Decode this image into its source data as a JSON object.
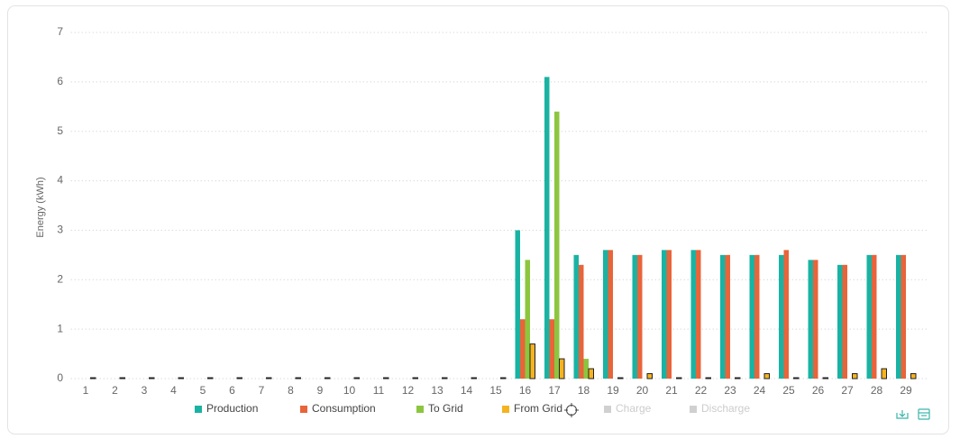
{
  "chart_data": {
    "type": "bar",
    "y_label": "Energy  (kWh)",
    "categories": [
      "1",
      "2",
      "3",
      "4",
      "5",
      "6",
      "7",
      "8",
      "9",
      "10",
      "11",
      "12",
      "13",
      "14",
      "15",
      "16",
      "17",
      "18",
      "19",
      "20",
      "21",
      "22",
      "23",
      "24",
      "25",
      "26",
      "27",
      "28",
      "29"
    ],
    "ylim": [
      0,
      7
    ],
    "yticks": [
      0,
      1,
      2,
      3,
      4,
      5,
      6,
      7
    ],
    "grid": true,
    "legend": "bottom",
    "series": [
      {
        "name": "Production",
        "color": "#1ab3a3",
        "values": [
          0,
          0,
          0,
          0,
          0,
          0,
          0,
          0,
          0,
          0,
          0,
          0,
          0,
          0,
          0,
          3.0,
          6.1,
          2.5,
          2.6,
          2.5,
          2.6,
          2.6,
          2.5,
          2.5,
          2.5,
          2.4,
          2.3,
          2.5,
          2.5
        ]
      },
      {
        "name": "Consumption",
        "color": "#e8643a",
        "values": [
          0,
          0,
          0,
          0,
          0,
          0,
          0,
          0,
          0,
          0,
          0,
          0,
          0,
          0,
          0,
          1.2,
          1.2,
          2.3,
          2.6,
          2.5,
          2.6,
          2.6,
          2.5,
          2.5,
          2.6,
          2.4,
          2.3,
          2.5,
          2.5
        ]
      },
      {
        "name": "To Grid",
        "color": "#8cc63f",
        "values": [
          0,
          0,
          0,
          0,
          0,
          0,
          0,
          0,
          0,
          0,
          0,
          0,
          0,
          0,
          0,
          2.4,
          5.4,
          0.4,
          0,
          0,
          0,
          0,
          0,
          0,
          0,
          0,
          0,
          0,
          0
        ]
      },
      {
        "name": "From Grid",
        "color": "#f5b320",
        "outline": "#222222",
        "values": [
          0,
          0,
          0,
          0,
          0,
          0,
          0,
          0,
          0,
          0,
          0,
          0,
          0,
          0,
          0,
          0.7,
          0.4,
          0.2,
          0,
          0.1,
          0,
          0,
          0,
          0.1,
          0,
          0,
          0.1,
          0.2,
          0.1
        ]
      },
      {
        "name": "Charge",
        "color": "#d0d0d0",
        "hidden": true,
        "values": [
          null,
          null,
          null,
          null,
          null,
          null,
          null,
          null,
          null,
          null,
          null,
          null,
          null,
          null,
          null,
          null,
          null,
          null,
          null,
          null,
          null,
          null,
          null,
          null,
          null,
          null,
          null,
          null,
          null
        ]
      },
      {
        "name": "Discharge",
        "color": "#d0d0d0",
        "hidden": true,
        "values": [
          null,
          null,
          null,
          null,
          null,
          null,
          null,
          null,
          null,
          null,
          null,
          null,
          null,
          null,
          null,
          null,
          null,
          null,
          null,
          null,
          null,
          null,
          null,
          null,
          null,
          null,
          null,
          null,
          null
        ]
      }
    ]
  }
}
